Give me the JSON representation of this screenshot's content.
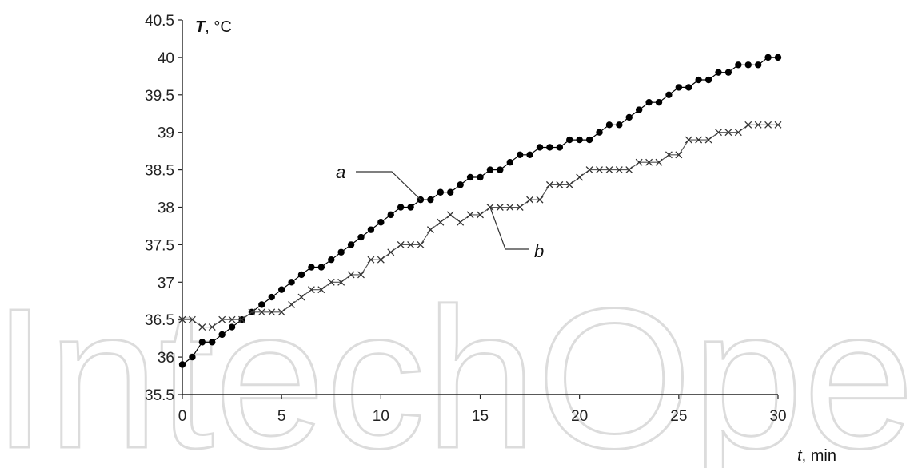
{
  "watermark": {
    "text": "IntechOpen"
  },
  "chart_data": {
    "type": "line",
    "title": "",
    "xlabel": {
      "symbol": "t",
      "unit": ", min"
    },
    "ylabel": {
      "symbol": "T",
      "unit": ", °C"
    },
    "xlim": [
      0,
      30
    ],
    "ylim": [
      35.5,
      40.5
    ],
    "xticks": [
      "0",
      "5",
      "10",
      "15",
      "20",
      "25",
      "30"
    ],
    "yticks": [
      "35.5",
      "36",
      "36.5",
      "37",
      "37.5",
      "38",
      "38.5",
      "39",
      "39.5",
      "40",
      "40.5"
    ],
    "grid": false,
    "series": [
      {
        "name": "a",
        "marker": "filled-circle",
        "x": [
          0,
          0.5,
          1,
          1.5,
          2,
          2.5,
          3,
          3.5,
          4,
          4.5,
          5,
          5.5,
          6,
          6.5,
          7,
          7.5,
          8,
          8.5,
          9,
          9.5,
          10,
          10.5,
          11,
          11.5,
          12,
          12.5,
          13,
          13.5,
          14,
          14.5,
          15,
          15.5,
          16,
          16.5,
          17,
          17.5,
          18,
          18.5,
          19,
          19.5,
          20,
          20.5,
          21,
          21.5,
          22,
          22.5,
          23,
          23.5,
          24,
          24.5,
          25,
          25.5,
          26,
          26.5,
          27,
          27.5,
          28,
          28.5,
          29,
          29.5,
          30
        ],
        "y": [
          35.9,
          36.0,
          36.2,
          36.2,
          36.3,
          36.4,
          36.5,
          36.6,
          36.7,
          36.8,
          36.9,
          37.0,
          37.1,
          37.2,
          37.2,
          37.3,
          37.4,
          37.5,
          37.6,
          37.7,
          37.8,
          37.9,
          38.0,
          38.0,
          38.1,
          38.1,
          38.2,
          38.2,
          38.3,
          38.4,
          38.4,
          38.5,
          38.5,
          38.6,
          38.7,
          38.7,
          38.8,
          38.8,
          38.8,
          38.9,
          38.9,
          38.9,
          39.0,
          39.1,
          39.1,
          39.2,
          39.3,
          39.4,
          39.4,
          39.5,
          39.6,
          39.6,
          39.7,
          39.7,
          39.8,
          39.8,
          39.9,
          39.9,
          39.9,
          40.0,
          40.0
        ]
      },
      {
        "name": "b",
        "marker": "x",
        "x": [
          0,
          0.5,
          1,
          1.5,
          2,
          2.5,
          3,
          3.5,
          4,
          4.5,
          5,
          5.5,
          6,
          6.5,
          7,
          7.5,
          8,
          8.5,
          9,
          9.5,
          10,
          10.5,
          11,
          11.5,
          12,
          12.5,
          13,
          13.5,
          14,
          14.5,
          15,
          15.5,
          16,
          16.5,
          17,
          17.5,
          18,
          18.5,
          19,
          19.5,
          20,
          20.5,
          21,
          21.5,
          22,
          22.5,
          23,
          23.5,
          24,
          24.5,
          25,
          25.5,
          26,
          26.5,
          27,
          27.5,
          28,
          28.5,
          29,
          29.5,
          30
        ],
        "y": [
          36.5,
          36.5,
          36.4,
          36.4,
          36.5,
          36.5,
          36.5,
          36.6,
          36.6,
          36.6,
          36.6,
          36.7,
          36.8,
          36.9,
          36.9,
          37.0,
          37.0,
          37.1,
          37.1,
          37.3,
          37.3,
          37.4,
          37.5,
          37.5,
          37.5,
          37.7,
          37.8,
          37.9,
          37.8,
          37.9,
          37.9,
          38.0,
          38.0,
          38.0,
          38.0,
          38.1,
          38.1,
          38.3,
          38.3,
          38.3,
          38.4,
          38.5,
          38.5,
          38.5,
          38.5,
          38.5,
          38.6,
          38.6,
          38.6,
          38.7,
          38.7,
          38.9,
          38.9,
          38.9,
          39.0,
          39.0,
          39.0,
          39.1,
          39.1,
          39.1,
          39.1
        ]
      }
    ]
  }
}
